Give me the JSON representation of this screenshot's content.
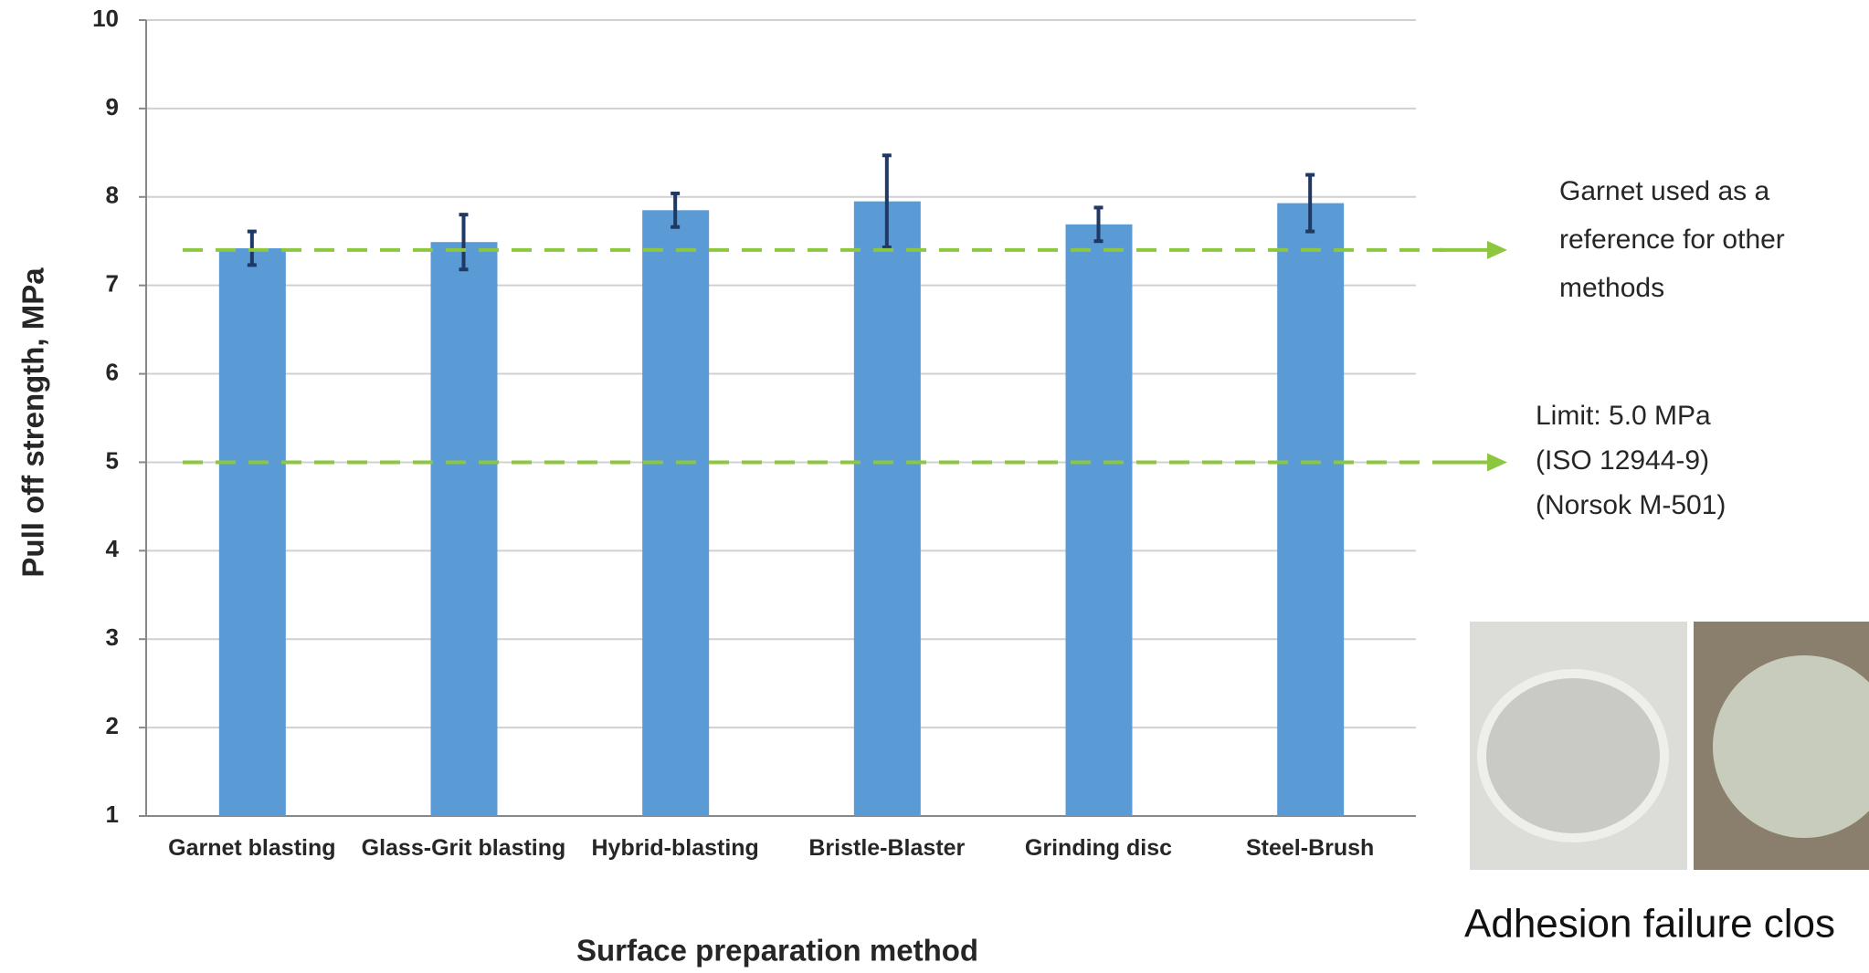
{
  "chart_data": {
    "type": "bar",
    "x_label": "Surface preparation method",
    "y_label": "Pull off strength, MPa",
    "categories": [
      "Garnet blasting",
      "Glass-Grit blasting",
      "Hybrid-blasting",
      "Bristle-Blaster",
      "Grinding disc",
      "Steel-Brush"
    ],
    "values": [
      7.42,
      7.49,
      7.85,
      7.95,
      7.69,
      7.93
    ],
    "errors": [
      0.19,
      0.31,
      0.19,
      0.52,
      0.19,
      0.32
    ],
    "color": "#5b9bd5",
    "error_color": "#1f3864",
    "ylim": [
      1,
      10
    ],
    "yticks": [
      1,
      2,
      3,
      4,
      5,
      6,
      7,
      8,
      9,
      10
    ],
    "grid": true,
    "reference_lines": [
      {
        "value": 7.4,
        "color": "#8dc63f",
        "annotation": [
          "Garnet used as a",
          "reference for other",
          "methods"
        ]
      },
      {
        "value": 5,
        "color": "#8dc63f",
        "annotation": [
          "Limit: 5.0 MPa",
          "(ISO 12944-9)",
          "(Norsok M-501)"
        ]
      }
    ]
  },
  "figure_caption": "Adhesion failure clos"
}
